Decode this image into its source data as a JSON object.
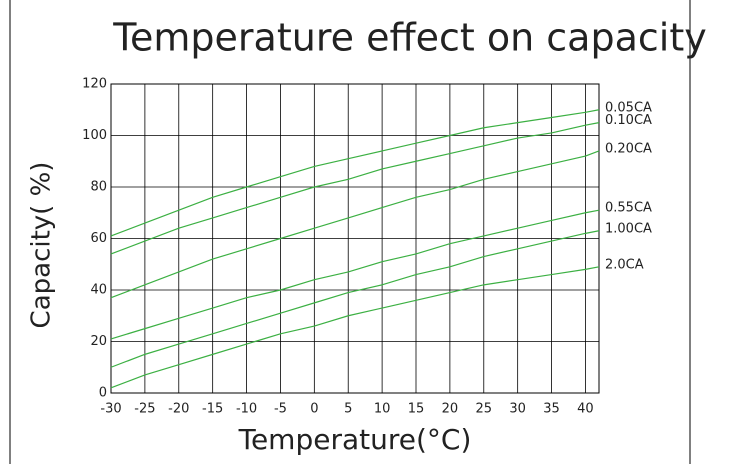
{
  "chart_data": {
    "type": "line",
    "title": "Temperature effect on capacity",
    "x_label": "Temperature(°C)",
    "y_label": "Capacity( %)",
    "x": [
      -30,
      -25,
      -20,
      -15,
      -10,
      -5,
      0,
      5,
      10,
      15,
      20,
      25,
      30,
      35,
      40,
      42
    ],
    "series": [
      {
        "name": "0.05CA",
        "color": "#3cb043",
        "values": [
          61,
          66,
          71,
          76,
          80,
          84,
          88,
          91,
          94,
          97,
          100,
          103,
          105,
          107,
          109,
          110
        ]
      },
      {
        "name": "0.10CA",
        "color": "#3cb043",
        "values": [
          54,
          59,
          64,
          68,
          72,
          76,
          80,
          83,
          87,
          90,
          93,
          96,
          99,
          101,
          104,
          105
        ]
      },
      {
        "name": "0.20CA",
        "color": "#3cb043",
        "values": [
          37,
          42,
          47,
          52,
          56,
          60,
          64,
          68,
          72,
          76,
          79,
          83,
          86,
          89,
          92,
          94
        ]
      },
      {
        "name": "0.55CA",
        "color": "#3cb043",
        "values": [
          21,
          25,
          29,
          33,
          37,
          40,
          44,
          47,
          51,
          54,
          58,
          61,
          64,
          67,
          70,
          71
        ]
      },
      {
        "name": "1.00CA",
        "color": "#3cb043",
        "values": [
          10,
          15,
          19,
          23,
          27,
          31,
          35,
          39,
          42,
          46,
          49,
          53,
          56,
          59,
          62,
          63
        ]
      },
      {
        "name": "2.0CA",
        "color": "#3cb043",
        "values": [
          2,
          7,
          11,
          15,
          19,
          23,
          26,
          30,
          33,
          36,
          39,
          42,
          44,
          46,
          48,
          49
        ]
      }
    ],
    "xlim": [
      -30,
      42
    ],
    "xticks": [
      -30,
      -25,
      -20,
      -15,
      -10,
      -5,
      0,
      5,
      10,
      15,
      20,
      25,
      30,
      35,
      40
    ],
    "ylim": [
      0,
      120
    ],
    "yticks": [
      0,
      20,
      40,
      60,
      80,
      100,
      120
    ],
    "grid": true
  }
}
